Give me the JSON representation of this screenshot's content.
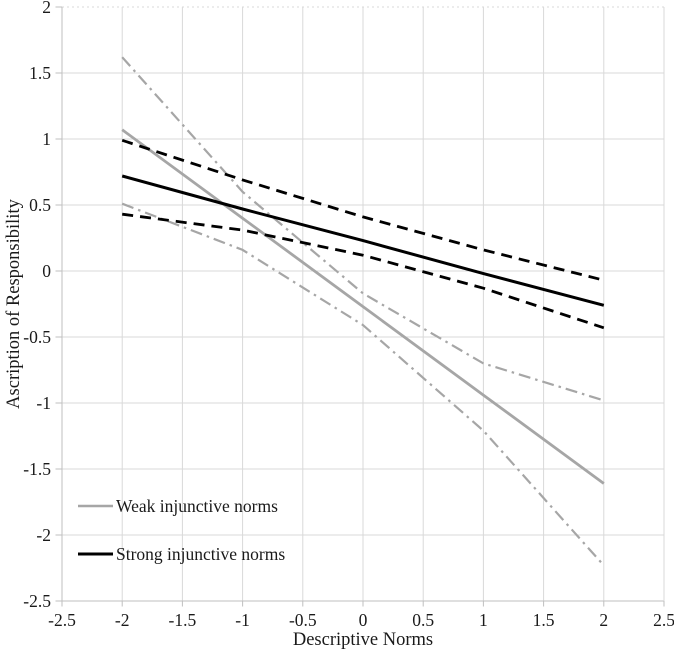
{
  "chart_data": {
    "type": "line",
    "title": "",
    "xlabel": "Descriptive Norms",
    "ylabel": "Ascription of Responsibility",
    "xlim": [
      -2.5,
      2.5
    ],
    "ylim": [
      -2.5,
      2
    ],
    "grid": true,
    "x_tick_values": [
      -2.5,
      -2,
      -1.5,
      -1,
      -0.5,
      0,
      0.5,
      1,
      1.5,
      2,
      2.5
    ],
    "x_tick_labels": [
      "-2.5",
      "-2",
      "-1.5",
      "-1",
      "-0.5",
      "0",
      "0.5",
      "1",
      "1.5",
      "2",
      "2.5"
    ],
    "y_tick_values": [
      2,
      1.5,
      1,
      0.5,
      0,
      -0.5,
      -1,
      -1.5,
      -2,
      -2.5
    ],
    "y_tick_labels": [
      "2",
      "1.5",
      "1",
      "0.5",
      "0",
      "-0.5",
      "-1",
      "-1.5",
      "-2",
      "-2.5"
    ],
    "x": [
      -2,
      -1,
      0,
      1,
      2
    ],
    "series": [
      {
        "name": "weak-mean",
        "label": "Weak injunctive norms",
        "role": "mean",
        "color": "#a6a6a6",
        "style": "solid",
        "width": 2.8,
        "values": [
          1.07,
          0.4,
          -0.27,
          -0.94,
          -1.61
        ]
      },
      {
        "name": "weak-ci-upper",
        "label": "Weak injunctive norms 95% CI upper",
        "role": "ci",
        "color": "#a6a6a6",
        "style": "dashdot",
        "width": 2.2,
        "values": [
          1.62,
          0.6,
          -0.17,
          -0.7,
          -0.98
        ]
      },
      {
        "name": "weak-ci-lower",
        "label": "Weak injunctive norms 95% CI lower",
        "role": "ci",
        "color": "#a6a6a6",
        "style": "dashdot",
        "width": 2.2,
        "values": [
          0.51,
          0.16,
          -0.41,
          -1.21,
          -2.23
        ]
      },
      {
        "name": "strong-mean",
        "label": "Strong injunctive norms",
        "role": "mean",
        "color": "#000000",
        "style": "solid",
        "width": 3,
        "values": [
          0.72,
          0.47,
          0.23,
          -0.02,
          -0.26
        ]
      },
      {
        "name": "strong-ci-upper",
        "label": "Strong injunctive norms 95% CI upper",
        "role": "ci",
        "color": "#000000",
        "style": "dashed",
        "width": 2.8,
        "values": [
          0.99,
          0.69,
          0.41,
          0.16,
          -0.07
        ]
      },
      {
        "name": "strong-ci-lower",
        "label": "Strong injunctive norms 95% CI lower",
        "role": "ci",
        "color": "#000000",
        "style": "dashed",
        "width": 2.8,
        "values": [
          0.43,
          0.31,
          0.12,
          -0.13,
          -0.43
        ]
      }
    ],
    "legend": {
      "position": "inside-bottom-left",
      "items": [
        {
          "label": "Weak injunctive norms",
          "color": "#a6a6a6",
          "line_width": 2.5
        },
        {
          "label": "Strong injunctive norms",
          "color": "#000000",
          "line_width": 3
        }
      ]
    },
    "colors": {
      "weak_series": "#a6a6a6",
      "strong_series": "#000000",
      "gridline": "#d9d9d9",
      "axis_line": "#bfbfbf",
      "text": "#1a1a1a",
      "background": "#ffffff"
    }
  }
}
